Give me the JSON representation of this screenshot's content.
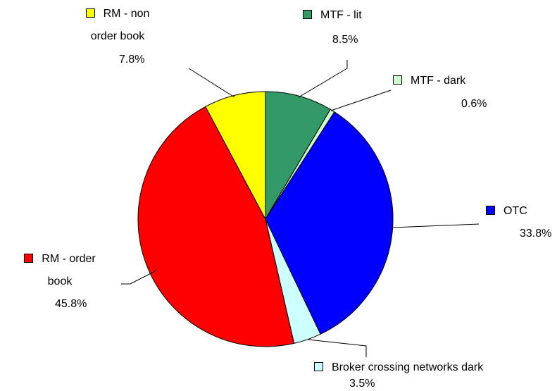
{
  "chart_data": {
    "type": "pie",
    "categories": [
      "MTF - lit",
      "MTF - dark",
      "OTC",
      "Broker crossing networks dark",
      "RM - order book",
      "RM - non order book"
    ],
    "values": [
      8.5,
      0.6,
      33.8,
      3.5,
      45.8,
      7.8
    ],
    "value_labels": [
      "8.5%",
      "0.6%",
      "33.8%",
      "3.5%",
      "45.8%",
      "7.8%"
    ],
    "colors": [
      "#339966",
      "#ccffcc",
      "#0000ff",
      "#ccffff",
      "#ff0000",
      "#ffff00"
    ]
  }
}
